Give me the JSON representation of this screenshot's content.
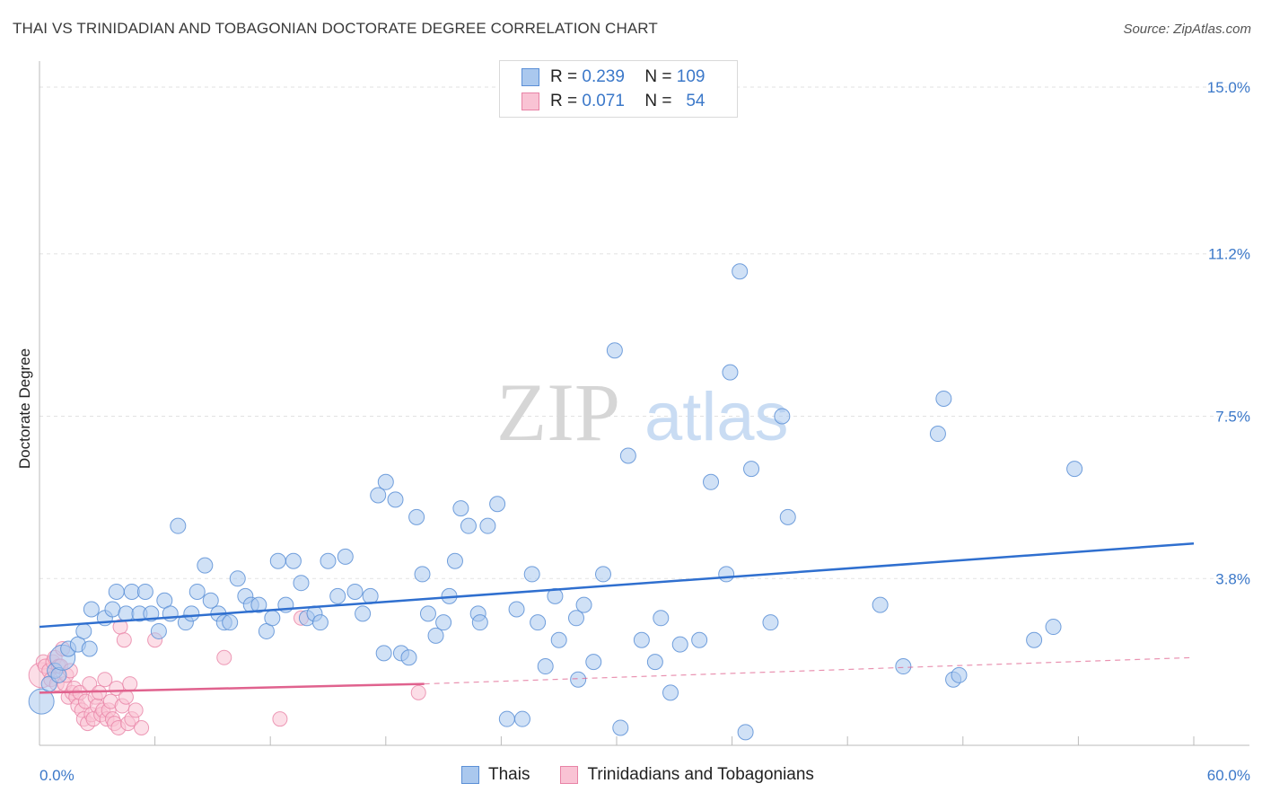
{
  "header": {
    "title": "THAI VS TRINIDADIAN AND TOBAGONIAN DOCTORATE DEGREE CORRELATION CHART",
    "source": "Source: ZipAtlas.com"
  },
  "watermark": {
    "zip": "ZIP",
    "atlas": "atlas"
  },
  "legend": {
    "r_label": "R =",
    "n_label": "N =",
    "rows": [
      {
        "r": "0.239",
        "n": "109",
        "color": "#aac8ee",
        "border": "#5b8fd6"
      },
      {
        "r": "0.071",
        "n": "54",
        "color": "#f9c3d4",
        "border": "#e883a6"
      }
    ]
  },
  "bottom_legend": [
    {
      "label": "Thais",
      "color": "#aac8ee",
      "border": "#5b8fd6"
    },
    {
      "label": "Trinidadians and Tobagonians",
      "color": "#f9c3d4",
      "border": "#e883a6"
    }
  ],
  "chart_data": {
    "type": "scatter",
    "title": "THAI VS TRINIDADIAN AND TOBAGONIAN DOCTORATE DEGREE CORRELATION CHART",
    "ylabel": "Doctorate Degree",
    "xlim": [
      0,
      60
    ],
    "ylim": [
      0,
      15
    ],
    "x_tick_labels": [
      "0.0%",
      "60.0%"
    ],
    "y_tick_labels": [
      "15.0%",
      "11.2%",
      "7.5%",
      "3.8%"
    ],
    "y_ticks": [
      15.0,
      11.2,
      7.5,
      3.8
    ],
    "grid": true,
    "legend_position": "top-center",
    "colors": {
      "thais": "#5b8fd6",
      "thais_fill": "#aac8ee",
      "tt": "#e883a6",
      "tt_fill": "#f9c3d4",
      "thais_line": "#2f6fcf",
      "tt_line": "#e0628e"
    },
    "series": [
      {
        "name": "Thais",
        "r": 0.239,
        "n": 109,
        "trend": {
          "x": [
            0,
            60
          ],
          "y": [
            2.7,
            4.6
          ]
        },
        "points": [
          [
            0.1,
            1.0
          ],
          [
            0.5,
            1.4
          ],
          [
            0.8,
            1.7
          ],
          [
            1.0,
            1.6
          ],
          [
            1.2,
            2.0
          ],
          [
            1.5,
            2.2
          ],
          [
            2.0,
            2.3
          ],
          [
            2.3,
            2.6
          ],
          [
            2.6,
            2.2
          ],
          [
            2.7,
            3.1
          ],
          [
            3.4,
            2.9
          ],
          [
            3.8,
            3.1
          ],
          [
            4.0,
            3.5
          ],
          [
            4.5,
            3.0
          ],
          [
            4.8,
            3.5
          ],
          [
            5.2,
            3.0
          ],
          [
            5.5,
            3.5
          ],
          [
            5.8,
            3.0
          ],
          [
            6.2,
            2.6
          ],
          [
            6.5,
            3.3
          ],
          [
            6.8,
            3.0
          ],
          [
            7.2,
            5.0
          ],
          [
            7.6,
            2.8
          ],
          [
            7.9,
            3.0
          ],
          [
            8.2,
            3.5
          ],
          [
            8.6,
            4.1
          ],
          [
            8.9,
            3.3
          ],
          [
            9.3,
            3.0
          ],
          [
            9.6,
            2.8
          ],
          [
            9.9,
            2.8
          ],
          [
            10.3,
            3.8
          ],
          [
            10.7,
            3.4
          ],
          [
            11.0,
            3.2
          ],
          [
            11.4,
            3.2
          ],
          [
            11.8,
            2.6
          ],
          [
            12.1,
            2.9
          ],
          [
            12.4,
            4.2
          ],
          [
            12.8,
            3.2
          ],
          [
            13.2,
            4.2
          ],
          [
            13.6,
            3.7
          ],
          [
            13.9,
            2.9
          ],
          [
            14.3,
            3.0
          ],
          [
            14.6,
            2.8
          ],
          [
            15.0,
            4.2
          ],
          [
            15.5,
            3.4
          ],
          [
            15.9,
            4.3
          ],
          [
            16.4,
            3.5
          ],
          [
            16.8,
            3.0
          ],
          [
            17.2,
            3.4
          ],
          [
            17.6,
            5.7
          ],
          [
            17.9,
            2.1
          ],
          [
            18.0,
            6.0
          ],
          [
            18.5,
            5.6
          ],
          [
            18.8,
            2.1
          ],
          [
            19.2,
            2.0
          ],
          [
            19.6,
            5.2
          ],
          [
            19.9,
            3.9
          ],
          [
            20.2,
            3.0
          ],
          [
            20.6,
            2.5
          ],
          [
            21.0,
            2.8
          ],
          [
            21.3,
            3.4
          ],
          [
            21.6,
            4.2
          ],
          [
            21.9,
            5.4
          ],
          [
            22.3,
            5.0
          ],
          [
            22.8,
            3.0
          ],
          [
            22.9,
            2.8
          ],
          [
            23.3,
            5.0
          ],
          [
            23.8,
            5.5
          ],
          [
            24.3,
            0.6
          ],
          [
            24.8,
            3.1
          ],
          [
            25.1,
            0.6
          ],
          [
            25.6,
            3.9
          ],
          [
            25.9,
            2.8
          ],
          [
            26.3,
            1.8
          ],
          [
            26.8,
            3.4
          ],
          [
            27.0,
            2.4
          ],
          [
            27.9,
            2.9
          ],
          [
            28.0,
            1.5
          ],
          [
            28.3,
            3.2
          ],
          [
            28.8,
            1.9
          ],
          [
            29.3,
            3.9
          ],
          [
            29.9,
            9.0
          ],
          [
            30.2,
            0.4
          ],
          [
            30.6,
            6.6
          ],
          [
            31.3,
            2.4
          ],
          [
            32.0,
            1.9
          ],
          [
            32.3,
            2.9
          ],
          [
            32.8,
            1.2
          ],
          [
            33.3,
            2.3
          ],
          [
            34.3,
            2.4
          ],
          [
            34.9,
            6.0
          ],
          [
            35.7,
            3.9
          ],
          [
            35.9,
            8.5
          ],
          [
            36.4,
            10.8
          ],
          [
            36.7,
            0.3
          ],
          [
            37.0,
            6.3
          ],
          [
            38.0,
            2.8
          ],
          [
            38.6,
            7.5
          ],
          [
            38.9,
            5.2
          ],
          [
            43.7,
            3.2
          ],
          [
            44.9,
            1.8
          ],
          [
            46.7,
            7.1
          ],
          [
            47.0,
            7.9
          ],
          [
            47.5,
            1.5
          ],
          [
            47.8,
            1.6
          ],
          [
            51.7,
            2.4
          ],
          [
            52.7,
            2.7
          ],
          [
            53.8,
            6.3
          ]
        ]
      },
      {
        "name": "Trinidadians and Tobagonians",
        "r": 0.071,
        "n": 54,
        "trend": {
          "x": [
            0,
            20
          ],
          "y": [
            1.2,
            1.4
          ],
          "dashed_to": [
            60,
            2.0
          ]
        },
        "points": [
          [
            0.1,
            1.6
          ],
          [
            0.2,
            1.9
          ],
          [
            0.3,
            1.8
          ],
          [
            0.5,
            1.7
          ],
          [
            0.6,
            1.5
          ],
          [
            0.7,
            1.9
          ],
          [
            0.8,
            2.0
          ],
          [
            0.9,
            1.4
          ],
          [
            1.0,
            1.8
          ],
          [
            1.1,
            1.8
          ],
          [
            1.2,
            2.2
          ],
          [
            1.3,
            1.4
          ],
          [
            1.4,
            1.6
          ],
          [
            1.5,
            1.1
          ],
          [
            1.6,
            1.7
          ],
          [
            1.7,
            1.2
          ],
          [
            1.8,
            1.3
          ],
          [
            1.9,
            1.1
          ],
          [
            2.0,
            0.9
          ],
          [
            2.1,
            1.2
          ],
          [
            2.2,
            0.8
          ],
          [
            2.3,
            0.6
          ],
          [
            2.4,
            1.0
          ],
          [
            2.5,
            0.5
          ],
          [
            2.6,
            1.4
          ],
          [
            2.7,
            0.7
          ],
          [
            2.8,
            0.6
          ],
          [
            2.9,
            1.1
          ],
          [
            3.0,
            0.9
          ],
          [
            3.1,
            1.2
          ],
          [
            3.2,
            0.7
          ],
          [
            3.3,
            0.8
          ],
          [
            3.4,
            1.5
          ],
          [
            3.5,
            0.6
          ],
          [
            3.6,
            0.8
          ],
          [
            3.7,
            1.0
          ],
          [
            3.8,
            0.6
          ],
          [
            3.9,
            0.5
          ],
          [
            4.0,
            1.3
          ],
          [
            4.1,
            0.4
          ],
          [
            4.2,
            2.7
          ],
          [
            4.3,
            0.9
          ],
          [
            4.4,
            2.4
          ],
          [
            4.5,
            1.1
          ],
          [
            4.6,
            0.5
          ],
          [
            4.7,
            1.4
          ],
          [
            4.8,
            0.6
          ],
          [
            5.0,
            0.8
          ],
          [
            5.3,
            0.4
          ],
          [
            6.0,
            2.4
          ],
          [
            9.6,
            2.0
          ],
          [
            12.5,
            0.6
          ],
          [
            13.6,
            2.9
          ],
          [
            19.7,
            1.2
          ]
        ]
      }
    ]
  }
}
